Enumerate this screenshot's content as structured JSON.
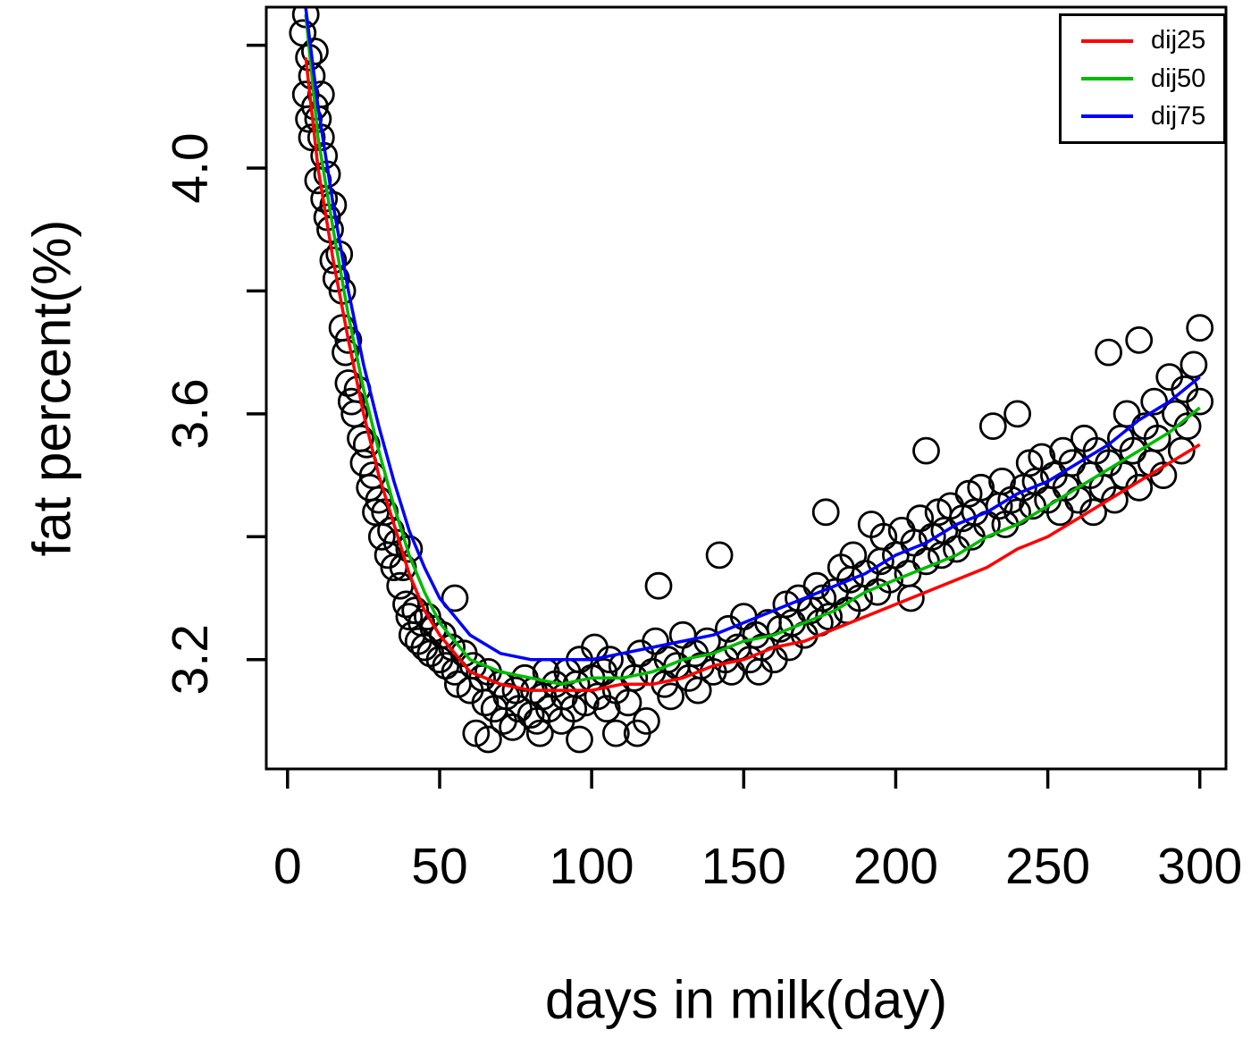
{
  "figure": {
    "background": "#FFFFFF"
  },
  "chart_data": {
    "type": "scatter",
    "title": "",
    "xlabel": "days in milk(day)",
    "ylabel": "fat percent(%)",
    "xlim": [
      -7,
      308.6
    ],
    "ylim": [
      3.022,
      4.262
    ],
    "x_ticks": [
      0,
      50,
      100,
      150,
      200,
      250,
      300
    ],
    "y_ticks": [
      3.2,
      3.4,
      3.6,
      3.8,
      4.0,
      4.2
    ],
    "y_labeled_ticks": [
      {
        "value": 3.2,
        "label": "3.2"
      },
      {
        "value": 3.6,
        "label": "3.6"
      },
      {
        "value": 4.0,
        "label": "4.0"
      }
    ],
    "grid": false,
    "legend": {
      "position": "top-right"
    },
    "point_style": {
      "shape": "open-circle",
      "stroke": "#000000",
      "radius_px": 14
    },
    "scatter_points": [
      [
        5,
        4.22
      ],
      [
        6,
        4.25
      ],
      [
        6,
        4.12
      ],
      [
        7,
        4.18
      ],
      [
        7,
        4.08
      ],
      [
        8,
        4.15
      ],
      [
        8,
        4.05
      ],
      [
        9,
        4.1
      ],
      [
        9,
        4.19
      ],
      [
        10,
        4.08
      ],
      [
        10,
        3.98
      ],
      [
        11,
        4.05
      ],
      [
        11,
        4.12
      ],
      [
        12,
        3.95
      ],
      [
        12,
        4.02
      ],
      [
        13,
        3.92
      ],
      [
        13,
        3.99
      ],
      [
        14,
        3.9
      ],
      [
        15,
        3.85
      ],
      [
        15,
        3.94
      ],
      [
        16,
        3.82
      ],
      [
        17,
        3.86
      ],
      [
        18,
        3.74
      ],
      [
        18,
        3.8
      ],
      [
        19,
        3.7
      ],
      [
        20,
        3.65
      ],
      [
        20,
        3.72
      ],
      [
        21,
        3.62
      ],
      [
        22,
        3.6
      ],
      [
        23,
        3.64
      ],
      [
        24,
        3.56
      ],
      [
        25,
        3.52
      ],
      [
        26,
        3.55
      ],
      [
        27,
        3.48
      ],
      [
        28,
        3.5
      ],
      [
        29,
        3.44
      ],
      [
        30,
        3.46
      ],
      [
        31,
        3.4
      ],
      [
        32,
        3.44
      ],
      [
        33,
        3.37
      ],
      [
        34,
        3.41
      ],
      [
        35,
        3.35
      ],
      [
        36,
        3.39
      ],
      [
        37,
        3.32
      ],
      [
        38,
        3.35
      ],
      [
        39,
        3.29
      ],
      [
        40,
        3.38
      ],
      [
        40,
        3.27
      ],
      [
        41,
        3.24
      ],
      [
        42,
        3.28
      ],
      [
        43,
        3.23
      ],
      [
        44,
        3.26
      ],
      [
        45,
        3.22
      ],
      [
        46,
        3.27
      ],
      [
        47,
        3.21
      ],
      [
        48,
        3.25
      ],
      [
        50,
        3.2
      ],
      [
        51,
        3.24
      ],
      [
        52,
        3.19
      ],
      [
        54,
        3.22
      ],
      [
        55,
        3.3
      ],
      [
        55,
        3.18
      ],
      [
        56,
        3.16
      ],
      [
        58,
        3.21
      ],
      [
        60,
        3.15
      ],
      [
        61,
        3.19
      ],
      [
        62,
        3.08
      ],
      [
        64,
        3.17
      ],
      [
        65,
        3.13
      ],
      [
        66,
        3.07
      ],
      [
        66,
        3.18
      ],
      [
        68,
        3.12
      ],
      [
        70,
        3.16
      ],
      [
        71,
        3.1
      ],
      [
        72,
        3.14
      ],
      [
        74,
        3.09
      ],
      [
        75,
        3.15
      ],
      [
        76,
        3.12
      ],
      [
        78,
        3.17
      ],
      [
        80,
        3.11
      ],
      [
        81,
        3.15
      ],
      [
        82,
        3.1
      ],
      [
        83,
        3.08
      ],
      [
        84,
        3.14
      ],
      [
        85,
        3.18
      ],
      [
        86,
        3.12
      ],
      [
        88,
        3.16
      ],
      [
        90,
        3.1
      ],
      [
        91,
        3.14
      ],
      [
        92,
        3.18
      ],
      [
        94,
        3.12
      ],
      [
        95,
        3.16
      ],
      [
        96,
        3.07
      ],
      [
        96,
        3.2
      ],
      [
        98,
        3.13
      ],
      [
        100,
        3.17
      ],
      [
        101,
        3.22
      ],
      [
        102,
        3.14
      ],
      [
        104,
        3.18
      ],
      [
        105,
        3.12
      ],
      [
        106,
        3.2
      ],
      [
        108,
        3.08
      ],
      [
        108,
        3.15
      ],
      [
        110,
        3.19
      ],
      [
        112,
        3.13
      ],
      [
        114,
        3.17
      ],
      [
        115,
        3.08
      ],
      [
        116,
        3.21
      ],
      [
        118,
        3.1
      ],
      [
        120,
        3.18
      ],
      [
        121,
        3.23
      ],
      [
        122,
        3.32
      ],
      [
        124,
        3.16
      ],
      [
        125,
        3.2
      ],
      [
        126,
        3.14
      ],
      [
        128,
        3.19
      ],
      [
        130,
        3.24
      ],
      [
        132,
        3.17
      ],
      [
        134,
        3.21
      ],
      [
        135,
        3.15
      ],
      [
        136,
        3.19
      ],
      [
        138,
        3.23
      ],
      [
        140,
        3.18
      ],
      [
        142,
        3.37
      ],
      [
        144,
        3.2
      ],
      [
        145,
        3.25
      ],
      [
        146,
        3.18
      ],
      [
        148,
        3.22
      ],
      [
        150,
        3.27
      ],
      [
        152,
        3.2
      ],
      [
        154,
        3.24
      ],
      [
        155,
        3.18
      ],
      [
        156,
        3.22
      ],
      [
        158,
        3.26
      ],
      [
        160,
        3.2
      ],
      [
        162,
        3.25
      ],
      [
        164,
        3.29
      ],
      [
        165,
        3.22
      ],
      [
        166,
        3.26
      ],
      [
        168,
        3.3
      ],
      [
        170,
        3.24
      ],
      [
        172,
        3.28
      ],
      [
        174,
        3.32
      ],
      [
        175,
        3.26
      ],
      [
        176,
        3.3
      ],
      [
        177,
        3.44
      ],
      [
        178,
        3.27
      ],
      [
        180,
        3.31
      ],
      [
        182,
        3.35
      ],
      [
        184,
        3.28
      ],
      [
        185,
        3.33
      ],
      [
        186,
        3.37
      ],
      [
        188,
        3.3
      ],
      [
        190,
        3.34
      ],
      [
        192,
        3.42
      ],
      [
        194,
        3.31
      ],
      [
        195,
        3.36
      ],
      [
        196,
        3.4
      ],
      [
        198,
        3.33
      ],
      [
        200,
        3.37
      ],
      [
        202,
        3.41
      ],
      [
        204,
        3.34
      ],
      [
        205,
        3.3
      ],
      [
        206,
        3.39
      ],
      [
        208,
        3.43
      ],
      [
        210,
        3.54
      ],
      [
        210,
        3.36
      ],
      [
        212,
        3.4
      ],
      [
        214,
        3.44
      ],
      [
        215,
        3.37
      ],
      [
        216,
        3.41
      ],
      [
        218,
        3.45
      ],
      [
        220,
        3.38
      ],
      [
        222,
        3.43
      ],
      [
        224,
        3.47
      ],
      [
        225,
        3.4
      ],
      [
        226,
        3.44
      ],
      [
        228,
        3.48
      ],
      [
        230,
        3.42
      ],
      [
        232,
        3.58
      ],
      [
        234,
        3.45
      ],
      [
        235,
        3.49
      ],
      [
        236,
        3.42
      ],
      [
        238,
        3.46
      ],
      [
        240,
        3.6
      ],
      [
        240,
        3.44
      ],
      [
        242,
        3.48
      ],
      [
        244,
        3.52
      ],
      [
        245,
        3.45
      ],
      [
        246,
        3.49
      ],
      [
        248,
        3.53
      ],
      [
        250,
        3.46
      ],
      [
        252,
        3.5
      ],
      [
        254,
        3.44
      ],
      [
        255,
        3.54
      ],
      [
        256,
        3.48
      ],
      [
        258,
        3.52
      ],
      [
        260,
        3.46
      ],
      [
        262,
        3.56
      ],
      [
        264,
        3.5
      ],
      [
        265,
        3.44
      ],
      [
        266,
        3.54
      ],
      [
        268,
        3.48
      ],
      [
        270,
        3.7
      ],
      [
        270,
        3.52
      ],
      [
        272,
        3.46
      ],
      [
        274,
        3.56
      ],
      [
        275,
        3.5
      ],
      [
        276,
        3.6
      ],
      [
        278,
        3.54
      ],
      [
        280,
        3.72
      ],
      [
        280,
        3.48
      ],
      [
        282,
        3.58
      ],
      [
        284,
        3.52
      ],
      [
        285,
        3.62
      ],
      [
        286,
        3.56
      ],
      [
        288,
        3.5
      ],
      [
        290,
        3.66
      ],
      [
        292,
        3.6
      ],
      [
        294,
        3.54
      ],
      [
        295,
        3.64
      ],
      [
        296,
        3.58
      ],
      [
        298,
        3.68
      ],
      [
        300,
        3.74
      ],
      [
        300,
        3.62
      ]
    ],
    "series": [
      {
        "name": "dij25",
        "color": "#FF0000",
        "points": [
          [
            6,
            4.18
          ],
          [
            10,
            4.0
          ],
          [
            15,
            3.85
          ],
          [
            20,
            3.72
          ],
          [
            25,
            3.6
          ],
          [
            30,
            3.5
          ],
          [
            35,
            3.42
          ],
          [
            40,
            3.34
          ],
          [
            45,
            3.28
          ],
          [
            50,
            3.24
          ],
          [
            60,
            3.18
          ],
          [
            70,
            3.16
          ],
          [
            80,
            3.15
          ],
          [
            90,
            3.15
          ],
          [
            100,
            3.15
          ],
          [
            110,
            3.16
          ],
          [
            120,
            3.16
          ],
          [
            130,
            3.17
          ],
          [
            140,
            3.19
          ],
          [
            150,
            3.2
          ],
          [
            160,
            3.22
          ],
          [
            170,
            3.23
          ],
          [
            180,
            3.25
          ],
          [
            190,
            3.27
          ],
          [
            200,
            3.29
          ],
          [
            210,
            3.31
          ],
          [
            220,
            3.33
          ],
          [
            230,
            3.35
          ],
          [
            240,
            3.38
          ],
          [
            250,
            3.4
          ],
          [
            260,
            3.43
          ],
          [
            270,
            3.46
          ],
          [
            280,
            3.49
          ],
          [
            290,
            3.52
          ],
          [
            300,
            3.55
          ]
        ]
      },
      {
        "name": "dij50",
        "color": "#00BB00",
        "points": [
          [
            6,
            4.25
          ],
          [
            10,
            4.05
          ],
          [
            15,
            3.9
          ],
          [
            20,
            3.76
          ],
          [
            25,
            3.64
          ],
          [
            30,
            3.54
          ],
          [
            35,
            3.45
          ],
          [
            40,
            3.37
          ],
          [
            45,
            3.31
          ],
          [
            50,
            3.26
          ],
          [
            60,
            3.2
          ],
          [
            70,
            3.18
          ],
          [
            80,
            3.17
          ],
          [
            90,
            3.16
          ],
          [
            100,
            3.17
          ],
          [
            110,
            3.17
          ],
          [
            120,
            3.18
          ],
          [
            130,
            3.2
          ],
          [
            140,
            3.21
          ],
          [
            150,
            3.23
          ],
          [
            160,
            3.24
          ],
          [
            170,
            3.26
          ],
          [
            180,
            3.28
          ],
          [
            190,
            3.31
          ],
          [
            200,
            3.33
          ],
          [
            210,
            3.35
          ],
          [
            220,
            3.37
          ],
          [
            230,
            3.4
          ],
          [
            240,
            3.42
          ],
          [
            250,
            3.45
          ],
          [
            260,
            3.48
          ],
          [
            270,
            3.51
          ],
          [
            280,
            3.54
          ],
          [
            290,
            3.57
          ],
          [
            300,
            3.61
          ]
        ]
      },
      {
        "name": "dij75",
        "color": "#0000FF",
        "points": [
          [
            5,
            4.3
          ],
          [
            10,
            4.1
          ],
          [
            15,
            3.94
          ],
          [
            20,
            3.8
          ],
          [
            25,
            3.68
          ],
          [
            30,
            3.58
          ],
          [
            35,
            3.49
          ],
          [
            40,
            3.41
          ],
          [
            45,
            3.35
          ],
          [
            50,
            3.3
          ],
          [
            60,
            3.24
          ],
          [
            70,
            3.21
          ],
          [
            80,
            3.2
          ],
          [
            90,
            3.2
          ],
          [
            100,
            3.2
          ],
          [
            110,
            3.21
          ],
          [
            120,
            3.22
          ],
          [
            130,
            3.23
          ],
          [
            140,
            3.24
          ],
          [
            150,
            3.26
          ],
          [
            160,
            3.28
          ],
          [
            170,
            3.3
          ],
          [
            180,
            3.32
          ],
          [
            190,
            3.34
          ],
          [
            200,
            3.37
          ],
          [
            210,
            3.39
          ],
          [
            220,
            3.42
          ],
          [
            230,
            3.44
          ],
          [
            240,
            3.47
          ],
          [
            250,
            3.49
          ],
          [
            260,
            3.52
          ],
          [
            270,
            3.55
          ],
          [
            280,
            3.59
          ],
          [
            290,
            3.62
          ],
          [
            300,
            3.66
          ]
        ]
      }
    ]
  }
}
